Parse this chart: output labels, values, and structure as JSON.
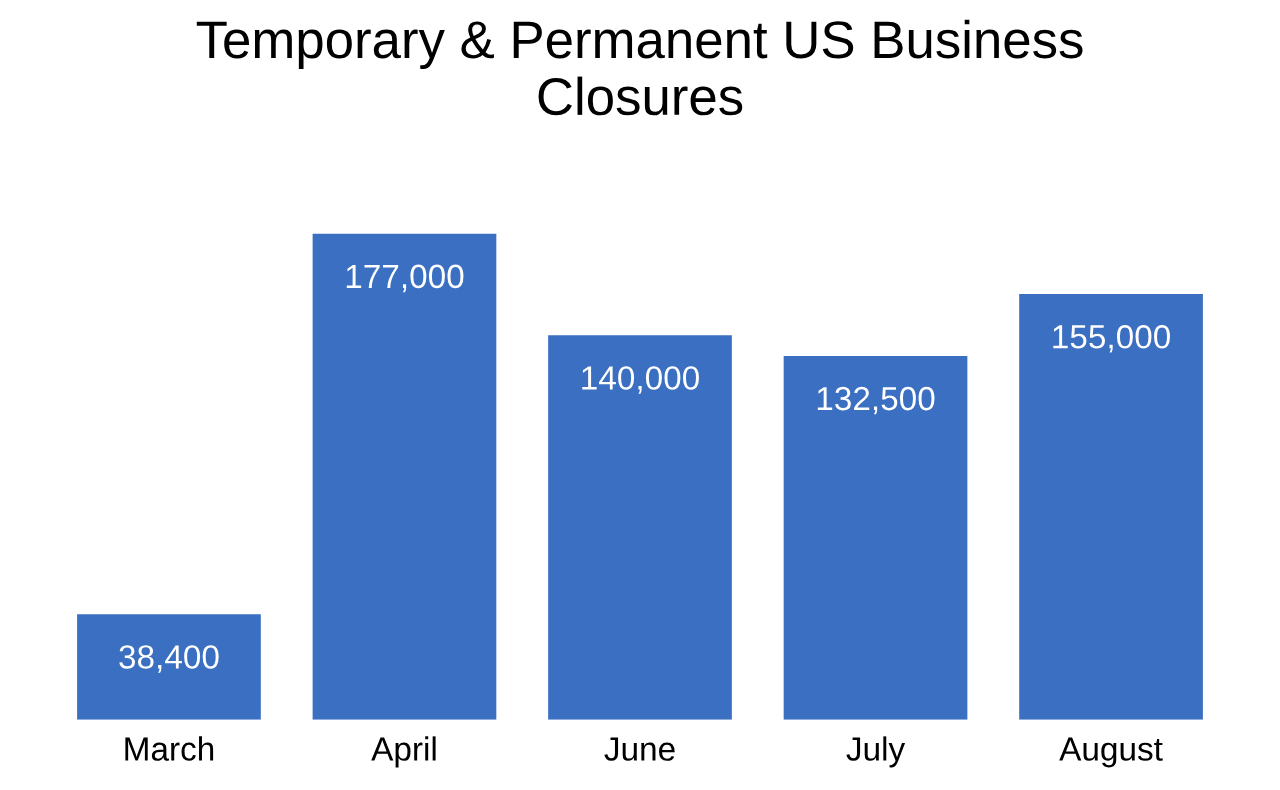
{
  "chart_data": {
    "type": "bar",
    "title": "Temporary & Permanent US Business\nClosures",
    "categories": [
      "March",
      "April",
      "June",
      "July",
      "August"
    ],
    "values": [
      38400,
      177000,
      140000,
      132500,
      155000
    ],
    "value_labels": [
      "38,400",
      "177,000",
      "140,000",
      "132,500",
      "155,000"
    ],
    "color": "#3a6fc1",
    "grid": false,
    "legend": false
  }
}
